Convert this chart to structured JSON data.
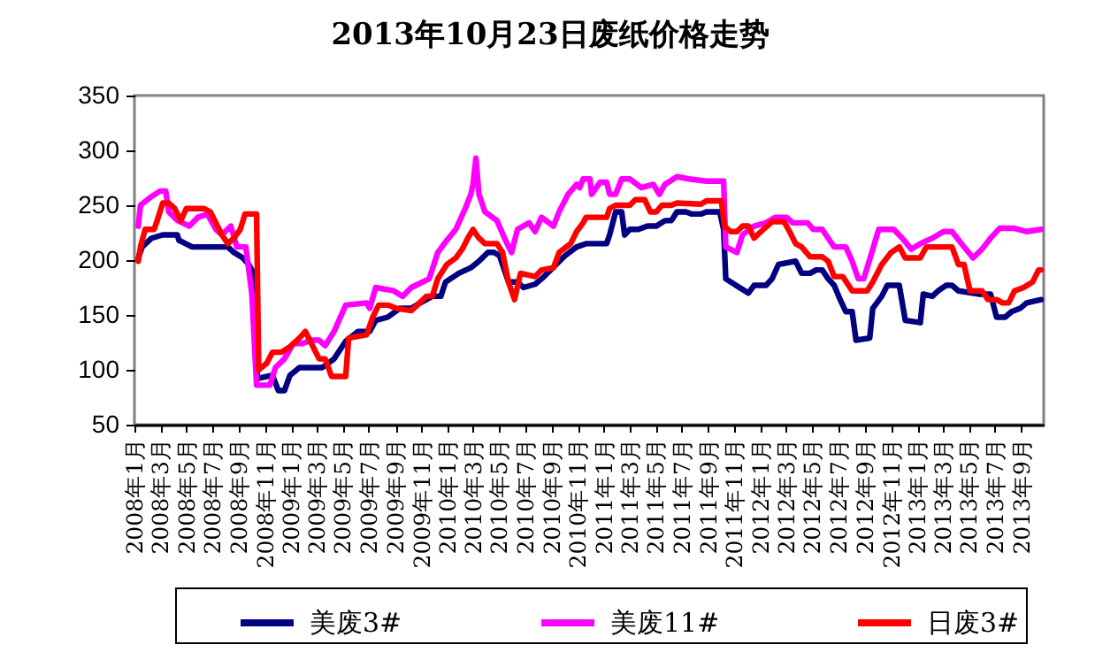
{
  "chart_data": {
    "type": "line",
    "title": "2013年10月23日废纸价格走势",
    "xlim": [
      "2008-01-01",
      "2013-10-23"
    ],
    "xticks": [
      {
        "value": "2008-01",
        "label": "2008年1月"
      },
      {
        "value": "2008-03",
        "label": "2008年3月"
      },
      {
        "value": "2008-05",
        "label": "2008年5月"
      },
      {
        "value": "2008-07",
        "label": "2008年7月"
      },
      {
        "value": "2008-09",
        "label": "2008年9月"
      },
      {
        "value": "2008-11",
        "label": "2008年11月"
      },
      {
        "value": "2009-01",
        "label": "2009年1月"
      },
      {
        "value": "2009-03",
        "label": "2009年3月"
      },
      {
        "value": "2009-05",
        "label": "2009年5月"
      },
      {
        "value": "2009-07",
        "label": "2009年7月"
      },
      {
        "value": "2009-09",
        "label": "2009年9月"
      },
      {
        "value": "2009-11",
        "label": "2009年11月"
      },
      {
        "value": "2010-01",
        "label": "2010年1月"
      },
      {
        "value": "2010-03",
        "label": "2010年3月"
      },
      {
        "value": "2010-05",
        "label": "2010年5月"
      },
      {
        "value": "2010-07",
        "label": "2010年7月"
      },
      {
        "value": "2010-09",
        "label": "2010年9月"
      },
      {
        "value": "2010-11",
        "label": "2010年11月"
      },
      {
        "value": "2011-01",
        "label": "2011年1月"
      },
      {
        "value": "2011-03",
        "label": "2011年3月"
      },
      {
        "value": "2011-05",
        "label": "2011年5月"
      },
      {
        "value": "2011-07",
        "label": "2011年7月"
      },
      {
        "value": "2011-09",
        "label": "2011年9月"
      },
      {
        "value": "2011-11",
        "label": "2011年11月"
      },
      {
        "value": "2012-01",
        "label": "2012年1月"
      },
      {
        "value": "2012-03",
        "label": "2012年3月"
      },
      {
        "value": "2012-05",
        "label": "2012年5月"
      },
      {
        "value": "2012-07",
        "label": "2012年7月"
      },
      {
        "value": "2012-09",
        "label": "2012年9月"
      },
      {
        "value": "2012-11",
        "label": "2012年11月"
      },
      {
        "value": "2013-01",
        "label": "2013年1月"
      },
      {
        "value": "2013-03",
        "label": "2013年3月"
      },
      {
        "value": "2013-05",
        "label": "2013年5月"
      },
      {
        "value": "2013-07",
        "label": "2013年7月"
      },
      {
        "value": "2013-09",
        "label": "2013年9月"
      }
    ],
    "ylim": [
      50,
      350
    ],
    "yticks": [
      50,
      100,
      150,
      200,
      250,
      300,
      350
    ],
    "legend": "bottom",
    "line_style": "solid",
    "series": [
      {
        "name": "美废3#",
        "color": "#000080",
        "x": [
          "2008-01-10",
          "2008-01-19",
          "2008-02-10",
          "2008-03-07",
          "2008-04-10",
          "2008-04-14",
          "2008-05-15",
          "2008-08-06",
          "2008-08-20",
          "2008-09-10",
          "2008-09-24",
          "2008-10-08",
          "2008-10-14",
          "2008-11-18",
          "2008-12-02",
          "2008-12-16",
          "2008-12-29",
          "2009-01-20",
          "2009-03-14",
          "2009-04-11",
          "2009-05-08",
          "2009-06-06",
          "2009-07-03",
          "2009-07-17",
          "2009-08-14",
          "2009-09-11",
          "2009-10-08",
          "2009-10-29",
          "2009-11-26",
          "2009-12-16",
          "2009-12-27",
          "2010-01-27",
          "2010-02-24",
          "2010-03-15",
          "2010-04-05",
          "2010-04-19",
          "2010-05-02",
          "2010-05-23",
          "2010-06-13",
          "2010-06-27",
          "2010-07-24",
          "2010-08-14",
          "2010-09-11",
          "2010-10-02",
          "2010-10-29",
          "2010-11-20",
          "2011-01-07",
          "2011-01-14",
          "2011-01-28",
          "2011-02-11",
          "2011-02-18",
          "2011-03-02",
          "2011-03-22",
          "2011-04-12",
          "2011-05-03",
          "2011-05-23",
          "2011-06-07",
          "2011-06-20",
          "2011-07-11",
          "2011-07-25",
          "2011-08-15",
          "2011-08-28",
          "2011-09-28",
          "2011-10-07",
          "2011-10-12",
          "2011-11-13",
          "2011-12-04",
          "2011-12-17",
          "2012-01-14",
          "2012-01-28",
          "2012-02-12",
          "2012-03-23",
          "2012-04-06",
          "2012-04-26",
          "2012-05-10",
          "2012-05-24",
          "2012-06-07",
          "2012-06-21",
          "2012-07-05",
          "2012-07-18",
          "2012-08-02",
          "2012-08-11",
          "2012-09-12",
          "2012-09-19",
          "2012-10-10",
          "2012-10-23",
          "2012-11-20",
          "2012-12-04",
          "2013-01-08",
          "2013-01-15",
          "2013-02-05",
          "2013-02-19",
          "2013-03-09",
          "2013-03-23",
          "2013-04-07",
          "2013-05-24",
          "2013-06-21",
          "2013-07-05",
          "2013-07-25",
          "2013-08-09",
          "2013-08-29",
          "2013-09-13",
          "2013-10-17"
        ],
        "values": [
          202,
          212,
          220,
          223,
          223,
          218,
          212,
          212,
          207,
          202,
          196,
          186,
          92,
          95,
          81,
          81,
          95,
          102,
          102,
          110,
          126,
          135,
          135,
          145,
          148,
          156,
          156,
          161,
          167,
          167,
          180,
          188,
          193,
          199,
          207,
          207,
          204,
          180,
          180,
          175,
          178,
          185,
          196,
          204,
          212,
          215,
          215,
          223,
          244,
          244,
          223,
          228,
          228,
          231,
          231,
          236,
          236,
          244,
          244,
          242,
          242,
          244,
          244,
          228,
          183,
          175,
          170,
          177,
          177,
          183,
          196,
          199,
          188,
          188,
          191,
          191,
          183,
          177,
          164,
          153,
          153,
          127,
          129,
          156,
          167,
          177,
          177,
          145,
          143,
          169,
          167,
          172,
          177,
          177,
          172,
          169,
          169,
          148,
          148,
          153,
          156,
          161,
          164
        ]
      },
      {
        "name": "美废11#",
        "color": "#ff00ff",
        "x": [
          "2008-01-10",
          "2008-01-15",
          "2008-02-10",
          "2008-03-01",
          "2008-03-14",
          "2008-03-21",
          "2008-04-11",
          "2008-05-08",
          "2008-05-28",
          "2008-06-19",
          "2008-07-09",
          "2008-07-23",
          "2008-08-13",
          "2008-08-27",
          "2008-09-17",
          "2008-10-01",
          "2008-10-12",
          "2008-11-12",
          "2008-11-25",
          "2008-12-16",
          "2009-01-06",
          "2009-01-27",
          "2009-02-17",
          "2009-03-07",
          "2009-03-21",
          "2009-04-11",
          "2009-05-08",
          "2009-06-26",
          "2009-07-03",
          "2009-07-17",
          "2009-08-28",
          "2009-09-18",
          "2009-10-08",
          "2009-11-19",
          "2009-12-09",
          "2009-12-30",
          "2010-01-20",
          "2010-02-11",
          "2010-02-24",
          "2010-03-01",
          "2010-03-08",
          "2010-03-15",
          "2010-03-29",
          "2010-04-26",
          "2010-05-16",
          "2010-05-30",
          "2010-06-13",
          "2010-07-10",
          "2010-07-24",
          "2010-08-08",
          "2010-09-05",
          "2010-09-18",
          "2010-10-09",
          "2010-10-29",
          "2010-11-05",
          "2010-11-13",
          "2010-11-29",
          "2010-12-03",
          "2010-12-23",
          "2011-01-07",
          "2011-01-14",
          "2011-01-28",
          "2011-02-11",
          "2011-03-02",
          "2011-03-29",
          "2011-04-26",
          "2011-05-10",
          "2011-05-23",
          "2011-06-20",
          "2011-07-18",
          "2011-08-28",
          "2011-10-07",
          "2011-10-12",
          "2011-11-07",
          "2011-11-20",
          "2011-12-17",
          "2012-01-14",
          "2012-02-05",
          "2012-03-02",
          "2012-03-16",
          "2012-04-20",
          "2012-05-03",
          "2012-05-24",
          "2012-06-07",
          "2012-06-21",
          "2012-07-18",
          "2012-08-02",
          "2012-08-16",
          "2012-08-29",
          "2012-09-13",
          "2012-10-03",
          "2012-11-07",
          "2012-11-27",
          "2012-12-18",
          "2013-01-08",
          "2013-02-05",
          "2013-03-03",
          "2013-03-23",
          "2013-04-14",
          "2013-05-11",
          "2013-06-01",
          "2013-06-21",
          "2013-07-12",
          "2013-08-16",
          "2013-09-13",
          "2013-10-17"
        ],
        "values": [
          231,
          250,
          258,
          263,
          263,
          244,
          236,
          231,
          239,
          242,
          228,
          223,
          231,
          212,
          212,
          169,
          86,
          86,
          102,
          110,
          124,
          124,
          127,
          127,
          122,
          135,
          159,
          161,
          156,
          175,
          172,
          167,
          175,
          183,
          207,
          218,
          228,
          247,
          260,
          269,
          293,
          260,
          244,
          236,
          218,
          207,
          228,
          234,
          226,
          239,
          231,
          244,
          260,
          269,
          266,
          274,
          274,
          260,
          271,
          271,
          260,
          260,
          274,
          274,
          266,
          269,
          260,
          269,
          276,
          274,
          272,
          272,
          212,
          207,
          223,
          231,
          234,
          239,
          239,
          234,
          234,
          228,
          228,
          220,
          212,
          212,
          199,
          183,
          183,
          202,
          228,
          228,
          220,
          210,
          215,
          220,
          226,
          226,
          215,
          202,
          210,
          220,
          229,
          229,
          226,
          228
        ]
      },
      {
        "name": "日废3#",
        "color": "#ff0000",
        "x": [
          "2008-01-10",
          "2008-01-15",
          "2008-01-26",
          "2008-02-16",
          "2008-02-23",
          "2008-03-07",
          "2008-03-21",
          "2008-04-04",
          "2008-04-18",
          "2008-05-01",
          "2008-06-12",
          "2008-06-26",
          "2008-07-09",
          "2008-07-23",
          "2008-08-06",
          "2008-08-20",
          "2008-09-04",
          "2008-09-15",
          "2008-10-12",
          "2008-10-17",
          "2008-11-05",
          "2008-11-18",
          "2008-12-09",
          "2008-12-29",
          "2009-01-20",
          "2009-02-03",
          "2009-02-17",
          "2009-03-07",
          "2009-03-21",
          "2009-04-05",
          "2009-05-08",
          "2009-05-15",
          "2009-06-26",
          "2009-07-10",
          "2009-07-24",
          "2009-08-14",
          "2009-09-04",
          "2009-10-08",
          "2009-10-22",
          "2009-11-12",
          "2009-11-26",
          "2009-12-09",
          "2009-12-30",
          "2010-01-20",
          "2010-02-04",
          "2010-02-17",
          "2010-03-01",
          "2010-03-15",
          "2010-03-29",
          "2010-04-26",
          "2010-05-09",
          "2010-05-23",
          "2010-06-06",
          "2010-06-20",
          "2010-07-24",
          "2010-08-08",
          "2010-09-05",
          "2010-09-18",
          "2010-10-15",
          "2010-10-29",
          "2010-11-13",
          "2010-11-20",
          "2011-01-07",
          "2011-01-14",
          "2011-01-28",
          "2011-03-02",
          "2011-03-15",
          "2011-04-06",
          "2011-04-19",
          "2011-05-03",
          "2011-05-16",
          "2011-06-07",
          "2011-06-20",
          "2011-08-15",
          "2011-08-28",
          "2011-10-02",
          "2011-10-09",
          "2011-10-23",
          "2011-11-07",
          "2011-11-20",
          "2011-12-04",
          "2011-12-17",
          "2012-01-08",
          "2012-01-28",
          "2012-02-25",
          "2012-03-09",
          "2012-03-23",
          "2012-04-06",
          "2012-04-26",
          "2012-05-24",
          "2012-06-07",
          "2012-06-21",
          "2012-07-11",
          "2012-08-02",
          "2012-09-06",
          "2012-09-19",
          "2012-10-10",
          "2012-11-01",
          "2012-11-20",
          "2012-12-04",
          "2013-01-08",
          "2013-01-22",
          "2013-03-23",
          "2013-04-07",
          "2013-04-20",
          "2013-05-04",
          "2013-06-01",
          "2013-06-15",
          "2013-07-05",
          "2013-07-19",
          "2013-08-02",
          "2013-08-16",
          "2013-09-06",
          "2013-09-27",
          "2013-10-11",
          "2013-10-17"
        ],
        "values": [
          199,
          212,
          228,
          228,
          236,
          252,
          252,
          247,
          236,
          247,
          247,
          244,
          234,
          223,
          215,
          220,
          228,
          242,
          242,
          100,
          106,
          116,
          116,
          121,
          129,
          135,
          124,
          110,
          110,
          94,
          94,
          129,
          132,
          148,
          159,
          159,
          156,
          154,
          159,
          167,
          167,
          183,
          196,
          202,
          210,
          220,
          228,
          220,
          215,
          215,
          207,
          180,
          164,
          188,
          185,
          191,
          193,
          207,
          215,
          226,
          234,
          239,
          239,
          247,
          250,
          250,
          255,
          255,
          244,
          244,
          250,
          250,
          252,
          251,
          254,
          254,
          231,
          226,
          226,
          231,
          231,
          220,
          228,
          235,
          235,
          226,
          215,
          212,
          203,
          203,
          199,
          185,
          185,
          172,
          172,
          180,
          196,
          207,
          212,
          202,
          202,
          212,
          212,
          196,
          196,
          172,
          172,
          164,
          164,
          161,
          161,
          172,
          175,
          180,
          191,
          191
        ]
      }
    ]
  }
}
